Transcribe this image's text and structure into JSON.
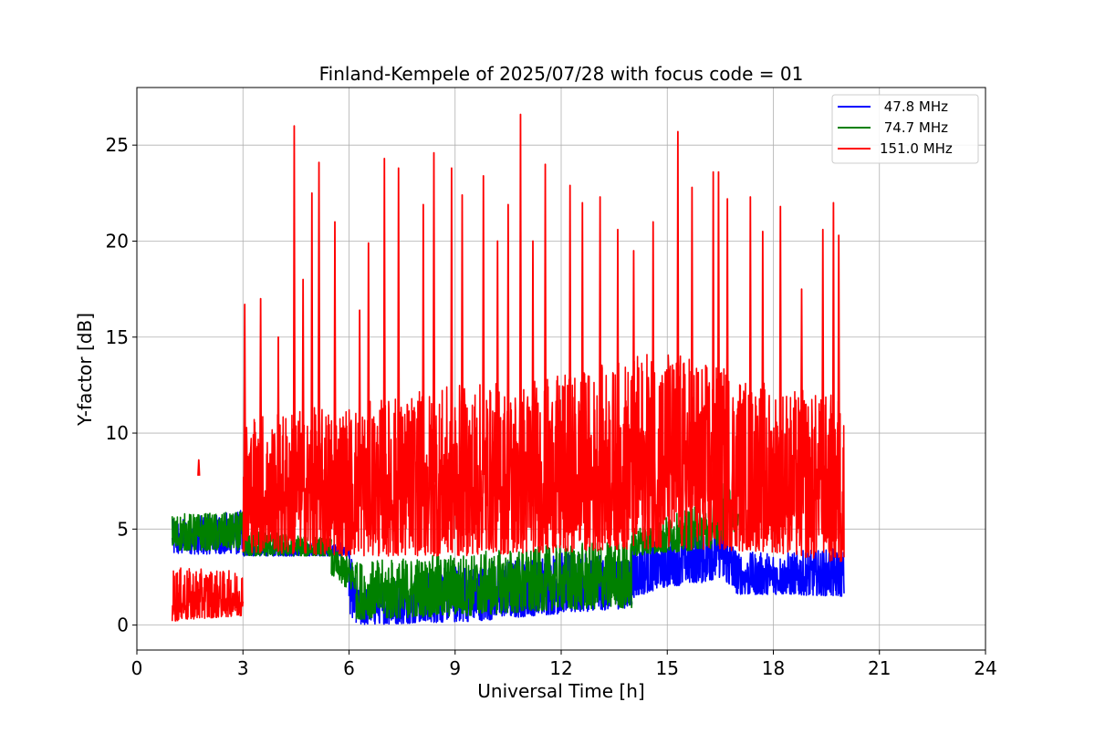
{
  "chart_data": {
    "type": "line",
    "title": "Finland-Kempele of 2025/07/28 with focus code = 01",
    "xlabel": "Universal Time [h]",
    "ylabel": "Y-factor [dB]",
    "xlim": [
      0,
      24
    ],
    "ylim": [
      -1.3,
      28
    ],
    "xticks": [
      0,
      3,
      6,
      9,
      12,
      15,
      18,
      21,
      24
    ],
    "yticks": [
      0,
      5,
      10,
      15,
      20,
      25
    ],
    "grid": true,
    "legend_position": "top-right",
    "series": [
      {
        "name": " 47.8 MHz",
        "color": "#0000ff",
        "segments": [
          {
            "x": [
              1.0,
              3.0
            ],
            "low": [
              3.7,
              3.7
            ],
            "high": [
              5.5,
              6.0
            ]
          },
          {
            "x": [
              3.0,
              6.0
            ],
            "low": [
              3.6,
              3.6
            ],
            "high": [
              4.3,
              4.3
            ]
          },
          {
            "x": [
              6.0,
              6.2
            ],
            "low": [
              0.5,
              0.2
            ],
            "high": [
              4.0,
              2.5
            ]
          },
          {
            "x": [
              6.2,
              9.5,
              12.0,
              14.0
            ],
            "low": [
              0.0,
              0.2,
              0.6,
              0.9
            ],
            "high": [
              2.0,
              3.3,
              3.8,
              3.5
            ]
          },
          {
            "x": [
              14.0,
              15.0,
              16.0,
              16.5,
              17.0,
              18.0,
              20.0
            ],
            "low": [
              1.4,
              2.0,
              2.2,
              2.5,
              1.6,
              1.6,
              1.5
            ],
            "high": [
              4.2,
              4.6,
              5.5,
              6.2,
              3.8,
              3.8,
              4.0
            ]
          }
        ]
      },
      {
        "name": " 74.7 MHz",
        "color": "#008000",
        "segments": [
          {
            "x": [
              1.0,
              3.0
            ],
            "low": [
              3.9,
              3.9
            ],
            "high": [
              5.8,
              5.9
            ]
          },
          {
            "x": [
              3.0,
              5.5
            ],
            "low": [
              3.6,
              3.6
            ],
            "high": [
              5.0,
              4.5
            ]
          },
          {
            "x": [
              5.5,
              6.2
            ],
            "low": [
              2.6,
              1.5
            ],
            "high": [
              4.0,
              3.5
            ]
          },
          {
            "x": [
              6.2,
              9.5,
              12.0,
              14.0
            ],
            "low": [
              0.3,
              0.5,
              0.8,
              0.9
            ],
            "high": [
              3.3,
              3.8,
              4.2,
              4.5
            ]
          },
          {
            "x": [
              14.0,
              16.3,
              16.7,
              17.0
            ],
            "low": [
              3.6,
              4.0,
              4.6,
              5.0
            ],
            "high": [
              5.0,
              6.5,
              7.8,
              6.0
            ]
          }
        ]
      },
      {
        "name": "151.0 MHz",
        "color": "#ff0000",
        "segments": [
          {
            "x": [
              1.0,
              3.0
            ],
            "low": [
              0.2,
              0.5
            ],
            "high": [
              3.0,
              2.8
            ]
          },
          {
            "x": [
              3.0,
              6.0,
              9.0,
              12.0,
              15.0,
              18.0,
              20.0
            ],
            "low": [
              3.8,
              3.6,
              3.6,
              3.8,
              4.0,
              3.8,
              3.2
            ],
            "high": [
              11.0,
              11.5,
              12.5,
              13.0,
              14.5,
              12.5,
              12.0
            ]
          }
        ],
        "peaks": [
          [
            1.75,
            8.6
          ],
          [
            3.05,
            16.7
          ],
          [
            3.5,
            17.0
          ],
          [
            4.0,
            15.0
          ],
          [
            4.45,
            26.0
          ],
          [
            4.7,
            18.0
          ],
          [
            4.95,
            22.5
          ],
          [
            5.15,
            24.1
          ],
          [
            5.6,
            21.0
          ],
          [
            6.3,
            16.4
          ],
          [
            6.55,
            19.9
          ],
          [
            7.0,
            24.3
          ],
          [
            7.4,
            23.8
          ],
          [
            8.1,
            21.9
          ],
          [
            8.4,
            24.6
          ],
          [
            8.9,
            23.8
          ],
          [
            9.2,
            22.4
          ],
          [
            9.8,
            23.4
          ],
          [
            10.2,
            20.0
          ],
          [
            10.5,
            21.9
          ],
          [
            10.85,
            26.6
          ],
          [
            11.2,
            20.0
          ],
          [
            11.55,
            24.0
          ],
          [
            12.25,
            22.9
          ],
          [
            12.6,
            22.0
          ],
          [
            13.1,
            22.3
          ],
          [
            13.6,
            20.6
          ],
          [
            14.05,
            19.5
          ],
          [
            14.6,
            21.0
          ],
          [
            15.3,
            25.7
          ],
          [
            15.7,
            22.8
          ],
          [
            16.3,
            23.6
          ],
          [
            16.45,
            23.6
          ],
          [
            16.7,
            22.2
          ],
          [
            17.35,
            22.3
          ],
          [
            17.7,
            20.5
          ],
          [
            18.2,
            21.8
          ],
          [
            18.8,
            17.5
          ],
          [
            19.4,
            20.6
          ],
          [
            19.7,
            22.0
          ],
          [
            19.85,
            20.3
          ]
        ]
      }
    ]
  }
}
